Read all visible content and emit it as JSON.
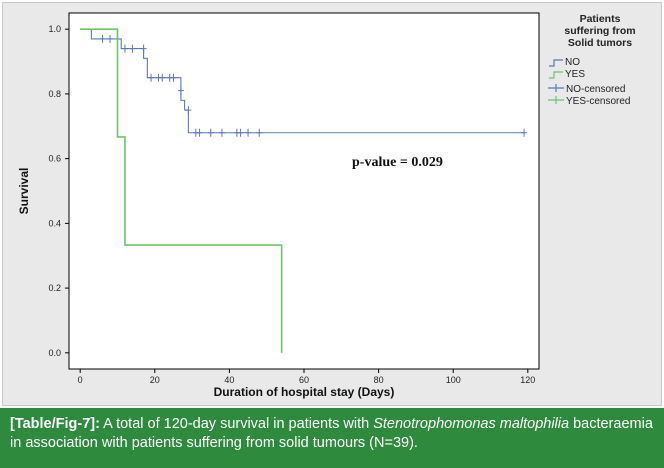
{
  "chart_data": {
    "type": "line",
    "subtype": "kaplan-meier",
    "xlabel": "Duration of hospital stay (Days)",
    "ylabel": "Survival",
    "xlim": [
      -3,
      123
    ],
    "ylim": [
      -0.05,
      1.05
    ],
    "xticks": [
      "0",
      "20",
      "40",
      "60",
      "80",
      "100",
      "120"
    ],
    "xtick_values": [
      0,
      20,
      40,
      60,
      80,
      100,
      120
    ],
    "yticks": [
      "0.0",
      "0.2",
      "0.4",
      "0.6",
      "0.8",
      "1.0"
    ],
    "ytick_values": [
      0,
      0.2,
      0.4,
      0.6,
      0.8,
      1.0
    ],
    "grid": false,
    "legend_placement": "top-right",
    "legend_title_lines": [
      "Patients",
      "suffering from",
      "Solid tumors"
    ],
    "legend_entries": [
      "NO",
      "YES",
      "NO-censored",
      "YES-censored"
    ],
    "series": [
      {
        "name": "NO",
        "color": "#5b78b8",
        "steps": [
          [
            0,
            1.0
          ],
          [
            3,
            0.97
          ],
          [
            10,
            0.97
          ],
          [
            11,
            0.94
          ],
          [
            16,
            0.94
          ],
          [
            17,
            0.91
          ],
          [
            18,
            0.85
          ],
          [
            26,
            0.85
          ],
          [
            27,
            0.78
          ],
          [
            28,
            0.75
          ],
          [
            29,
            0.68
          ],
          [
            119,
            0.68
          ]
        ],
        "censored": [
          [
            6,
            0.97
          ],
          [
            8,
            0.97
          ],
          [
            12,
            0.94
          ],
          [
            14,
            0.94
          ],
          [
            17,
            0.94
          ],
          [
            19,
            0.85
          ],
          [
            21,
            0.85
          ],
          [
            22,
            0.85
          ],
          [
            24,
            0.85
          ],
          [
            25,
            0.85
          ],
          [
            27,
            0.81
          ],
          [
            29,
            0.75
          ],
          [
            31,
            0.68
          ],
          [
            32,
            0.68
          ],
          [
            35,
            0.68
          ],
          [
            38,
            0.68
          ],
          [
            42,
            0.68
          ],
          [
            43,
            0.68
          ],
          [
            45,
            0.68
          ],
          [
            48,
            0.68
          ],
          [
            119,
            0.68
          ]
        ]
      },
      {
        "name": "YES",
        "color": "#6cc46c",
        "steps": [
          [
            0,
            1.0
          ],
          [
            10,
            1.0
          ],
          [
            10,
            0.667
          ],
          [
            12,
            0.667
          ],
          [
            12,
            0.333
          ],
          [
            54,
            0.333
          ],
          [
            54,
            0.0
          ]
        ],
        "censored": []
      }
    ],
    "annotations": [
      {
        "text": "p-value = 0.029",
        "x": 73,
        "y": 0.59
      }
    ]
  },
  "caption": {
    "label": "[Table/Fig-7]:",
    "text_before": " A total of 120-day survival in patients with ",
    "italic": "Stenotrophomonas maltophilia",
    "text_after": " bacteraemia in association with patients suffering from solid tumours (N=39)."
  }
}
